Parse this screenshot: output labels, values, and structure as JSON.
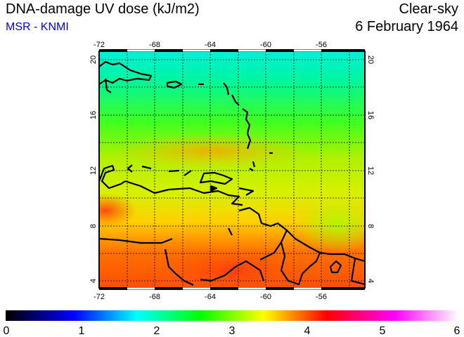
{
  "header": {
    "title": "DNA-damage UV dose (kJ/m2)",
    "subtitle": "MSR - KNMI",
    "condition": "Clear-sky",
    "date": "6 February 1964"
  },
  "map": {
    "lon_ticks": [
      "-72",
      "-68",
      "-64",
      "-60",
      "-56"
    ],
    "lat_ticks": [
      "20",
      "16",
      "12",
      "8",
      "4"
    ],
    "lon_range": [
      -72,
      -53
    ],
    "lat_range": [
      3.5,
      20.6
    ],
    "region": "Caribbean / northern South America"
  },
  "colorbar": {
    "ticks": [
      "0",
      "1",
      "2",
      "3",
      "4",
      "5",
      "6"
    ],
    "range": [
      0,
      6
    ],
    "colors": [
      "#000000",
      "#0000ff",
      "#00ffff",
      "#00ff00",
      "#ffff00",
      "#ff0000",
      "#ff00ff",
      "#ffffff"
    ]
  }
}
